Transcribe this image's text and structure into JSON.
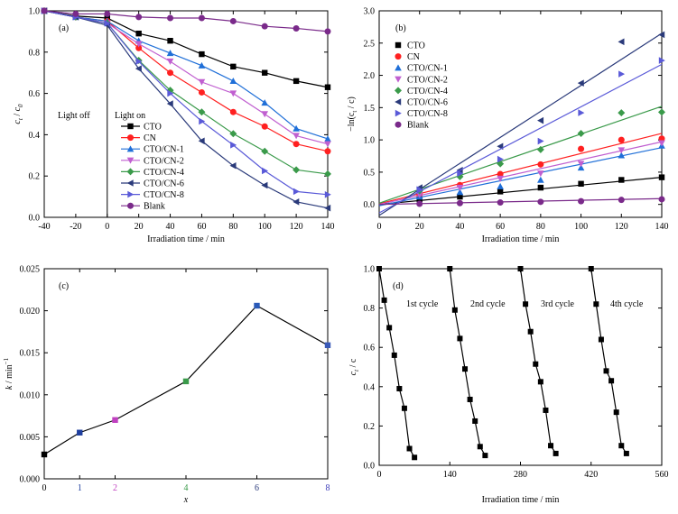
{
  "chart_data": [
    {
      "panel": "(a)",
      "type": "line",
      "xlabel": "Irradiation time / min",
      "ylabel": "c / c0",
      "ylabel_main": "c",
      "ylabel_sub1": "t",
      "ylabel_sep": " / ",
      "ylabel_sub2": "0",
      "xlim": [
        -40,
        140
      ],
      "ylim": [
        0,
        1.0
      ],
      "xticks": [
        -40,
        -20,
        0,
        20,
        40,
        60,
        80,
        100,
        120,
        140
      ],
      "yticks": [
        0.0,
        0.2,
        0.4,
        0.6,
        0.8,
        1.0
      ],
      "annotations": {
        "light_off": "Light off",
        "light_on": "Light on"
      },
      "vline_x": 0,
      "legend_position": "center-left",
      "x": [
        -40,
        -20,
        0,
        20,
        40,
        60,
        80,
        100,
        120,
        140
      ],
      "series": [
        {
          "name": "CTO",
          "color": "#000000",
          "marker": "square",
          "values": [
            1.0,
            0.975,
            0.965,
            0.89,
            0.855,
            0.79,
            0.73,
            0.7,
            0.66,
            0.63
          ]
        },
        {
          "name": "CN",
          "color": "#ff2020",
          "marker": "circle",
          "values": [
            1.0,
            0.97,
            0.95,
            0.82,
            0.7,
            0.605,
            0.51,
            0.44,
            0.355,
            0.32
          ]
        },
        {
          "name": "CTO/CN-1",
          "color": "#1f6fd8",
          "marker": "triangle-up",
          "values": [
            1.0,
            0.97,
            0.95,
            0.855,
            0.795,
            0.735,
            0.66,
            0.555,
            0.43,
            0.38
          ]
        },
        {
          "name": "CTO/CN-2",
          "color": "#c05fd0",
          "marker": "triangle-down",
          "values": [
            1.0,
            0.97,
            0.94,
            0.84,
            0.755,
            0.655,
            0.6,
            0.5,
            0.395,
            0.355
          ]
        },
        {
          "name": "CTO/CN-4",
          "color": "#3a9a4a",
          "marker": "diamond",
          "values": [
            1.0,
            0.97,
            0.94,
            0.76,
            0.615,
            0.51,
            0.405,
            0.32,
            0.23,
            0.21
          ]
        },
        {
          "name": "CTO/CN-6",
          "color": "#2a3a7a",
          "marker": "triangle-left",
          "values": [
            1.0,
            0.97,
            0.93,
            0.72,
            0.55,
            0.37,
            0.25,
            0.155,
            0.075,
            0.045
          ]
        },
        {
          "name": "CTO/CN-8",
          "color": "#5a5ad8",
          "marker": "triangle-right",
          "values": [
            1.0,
            0.97,
            0.94,
            0.755,
            0.6,
            0.465,
            0.35,
            0.225,
            0.125,
            0.11
          ]
        },
        {
          "name": "Blank",
          "color": "#7a2a8a",
          "marker": "circle",
          "values": [
            1.0,
            0.985,
            0.985,
            0.97,
            0.965,
            0.965,
            0.95,
            0.925,
            0.915,
            0.9
          ]
        }
      ]
    },
    {
      "panel": "(b)",
      "type": "scatter",
      "xlabel": "Irradiation time / min",
      "ylabel": "−ln(ct / c)",
      "ylabel_pre": "−ln(c",
      "ylabel_sub": "t",
      "ylabel_post": " / c)",
      "xlim": [
        0,
        140
      ],
      "ylim": [
        -0.2,
        3.0
      ],
      "xticks": [
        0,
        20,
        40,
        60,
        80,
        100,
        120,
        140
      ],
      "yticks": [
        0.0,
        0.5,
        1.0,
        1.5,
        2.0,
        2.5,
        3.0
      ],
      "legend_position": "top-left",
      "x": [
        0,
        20,
        40,
        60,
        80,
        100,
        120,
        140
      ],
      "series": [
        {
          "name": "CTO",
          "color": "#000000",
          "marker": "square",
          "values": [
            0.0,
            0.08,
            0.12,
            0.2,
            0.26,
            0.32,
            0.38,
            0.42
          ],
          "fit": [
            0.0,
            0.42
          ]
        },
        {
          "name": "CN",
          "color": "#ff2020",
          "marker": "circle",
          "values": [
            0.0,
            0.15,
            0.3,
            0.47,
            0.62,
            0.86,
            1.0,
            1.02
          ],
          "fit": [
            0.01,
            1.1
          ]
        },
        {
          "name": "CTO/CN-1",
          "color": "#1f6fd8",
          "marker": "triangle-up",
          "values": [
            0.0,
            0.12,
            0.19,
            0.28,
            0.38,
            0.57,
            0.76,
            0.91
          ],
          "fit": [
            -0.02,
            0.88
          ]
        },
        {
          "name": "CTO/CN-2",
          "color": "#c05fd0",
          "marker": "triangle-down",
          "values": [
            0.0,
            0.15,
            0.26,
            0.4,
            0.48,
            0.63,
            0.84,
            0.95
          ],
          "fit": [
            0.0,
            0.97
          ]
        },
        {
          "name": "CTO/CN-4",
          "color": "#3a9a4a",
          "marker": "diamond",
          "values": [
            0.0,
            0.21,
            0.43,
            0.63,
            0.85,
            1.1,
            1.42,
            1.43
          ],
          "fit": [
            0.02,
            1.52
          ]
        },
        {
          "name": "CTO/CN-6",
          "color": "#2a3a7a",
          "marker": "triangle-left",
          "values": [
            0.0,
            0.26,
            0.53,
            0.9,
            1.3,
            1.88,
            2.52,
            2.63
          ],
          "fit": [
            -0.17,
            2.65
          ]
        },
        {
          "name": "CTO/CN-8",
          "color": "#5a5ad8",
          "marker": "triangle-right",
          "values": [
            0.0,
            0.23,
            0.48,
            0.7,
            0.98,
            1.42,
            2.02,
            2.23
          ],
          "fit": [
            -0.13,
            2.17
          ]
        },
        {
          "name": "Blank",
          "color": "#7a2a8a",
          "marker": "circle",
          "values": [
            0.0,
            0.01,
            0.02,
            0.03,
            0.04,
            0.05,
            0.07,
            0.08
          ],
          "fit": [
            0.0,
            0.09
          ]
        }
      ]
    },
    {
      "panel": "(c)",
      "type": "line",
      "xlabel": "x",
      "ylabel": "k / min−1",
      "ylabel_main": "k",
      "ylabel_unit": " / min",
      "ylabel_sup": "−1",
      "xlim": [
        0,
        8
      ],
      "ylim": [
        0,
        0.025
      ],
      "xticks": [
        0,
        1,
        2,
        4,
        6,
        8
      ],
      "xtick_colors": [
        "#000000",
        "#1f3f9f",
        "#c040c0",
        "#3a9a4a",
        "#2a3a7a",
        "#3a3ab8"
      ],
      "yticks": [
        0.0,
        0.005,
        0.01,
        0.015,
        0.02,
        0.025
      ],
      "ytick_labels": [
        "0.000",
        "0.005",
        "0.010",
        "0.015",
        "0.020",
        "0.025"
      ],
      "x": [
        0,
        1,
        2,
        4,
        6,
        8
      ],
      "values": [
        0.0029,
        0.0055,
        0.007,
        0.0116,
        0.0206,
        0.0159
      ],
      "point_colors": [
        "#000000",
        "#1f3f9f",
        "#c040c0",
        "#3a9a4a",
        "#2a5ab8",
        "#3a5ab8"
      ]
    },
    {
      "panel": "(d)",
      "type": "line",
      "xlabel": "Irradiation time / min",
      "ylabel": "ct / c",
      "ylabel_main": "c",
      "ylabel_sub": "t",
      "ylabel_post": " / c",
      "xlim": [
        0,
        560
      ],
      "ylim": [
        0,
        1.0
      ],
      "xticks": [
        0,
        140,
        280,
        420,
        560
      ],
      "yticks": [
        0.0,
        0.2,
        0.4,
        0.6,
        0.8,
        1.0
      ],
      "cycle_labels": [
        "1st cycle",
        "2nd cycle",
        "3rd cycle",
        "4th cycle"
      ],
      "cycles": [
        {
          "x": [
            0,
            10,
            20,
            30,
            40,
            50,
            60,
            70,
            80,
            90
          ],
          "y": [
            1.0,
            0.84,
            0.7,
            0.56,
            0.39,
            0.29,
            0.085,
            0.04,
            null,
            null
          ]
        },
        {
          "x": [
            140,
            150,
            160,
            170,
            180,
            190,
            200,
            210,
            220
          ],
          "y": [
            1.0,
            0.79,
            0.645,
            0.49,
            0.335,
            0.225,
            0.095,
            0.05,
            null
          ]
        },
        {
          "x": [
            280,
            290,
            300,
            310,
            320,
            330,
            340,
            350
          ],
          "y": [
            1.0,
            0.82,
            0.68,
            0.515,
            0.425,
            0.28,
            0.1,
            0.06
          ]
        },
        {
          "x": [
            420,
            430,
            440,
            450,
            460,
            470,
            480,
            490
          ],
          "y": [
            1.0,
            0.82,
            0.64,
            0.48,
            0.43,
            0.27,
            0.1,
            0.06
          ]
        }
      ],
      "color": "#000000"
    }
  ]
}
